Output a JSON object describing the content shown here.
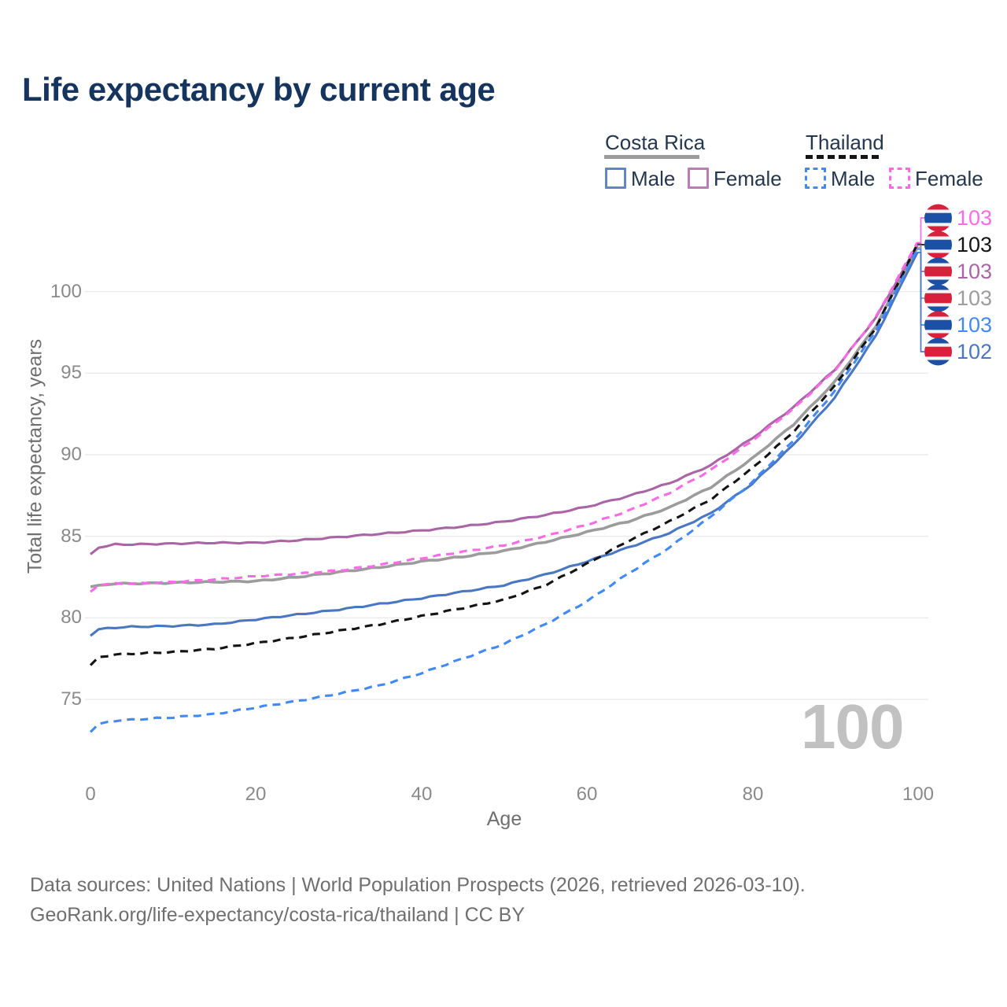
{
  "title": "Life expectancy by current age",
  "legend": {
    "groups": [
      {
        "title": "Costa Rica",
        "line_style": "solid",
        "underline_color": "#9c9c9c",
        "items": [
          {
            "label": "Male",
            "color": "#6286c4",
            "dashed": false
          },
          {
            "label": "Female",
            "color": "#b97fb5",
            "dashed": false
          }
        ]
      },
      {
        "title": "Thailand",
        "line_style": "dashed",
        "underline_color": "#141414",
        "items": [
          {
            "label": "Male",
            "color": "#4289f5",
            "dashed": true
          },
          {
            "label": "Female",
            "color": "#f96be6",
            "dashed": true
          }
        ]
      }
    ]
  },
  "chart_data": {
    "type": "line",
    "title": "Life expectancy by current age",
    "xlabel": "Age",
    "ylabel": "Total life expectancy, years",
    "xticks": [
      0,
      20,
      40,
      60,
      80,
      100
    ],
    "yticks": [
      75,
      80,
      85,
      90,
      95,
      100
    ],
    "xlim": [
      0,
      100
    ],
    "ylim": [
      72,
      104
    ],
    "grid": "horizontal",
    "ages": [
      0,
      1,
      3,
      5,
      10,
      15,
      20,
      25,
      30,
      35,
      40,
      45,
      50,
      55,
      60,
      65,
      70,
      75,
      80,
      85,
      90,
      95,
      100
    ],
    "series": [
      {
        "name": "Costa Rica",
        "role": "overall",
        "color": "#9c9c9c",
        "dashed": false,
        "values": [
          81.9,
          82.0,
          82.1,
          82.1,
          82.15,
          82.2,
          82.25,
          82.5,
          82.8,
          83.1,
          83.45,
          83.75,
          84.1,
          84.65,
          85.25,
          85.9,
          86.75,
          88.0,
          89.75,
          91.85,
          94.45,
          97.9,
          102.7
        ]
      },
      {
        "name": "Costa Rica Female",
        "role": "female",
        "color": "#a965a5",
        "dashed": false,
        "values": [
          83.9,
          84.3,
          84.5,
          84.5,
          84.55,
          84.6,
          84.6,
          84.75,
          84.95,
          85.15,
          85.35,
          85.6,
          85.9,
          86.3,
          86.8,
          87.45,
          88.25,
          89.35,
          91.0,
          92.9,
          95.2,
          98.4,
          102.85
        ]
      },
      {
        "name": "Costa Rica Male",
        "role": "male",
        "color": "#4a77c4",
        "dashed": false,
        "values": [
          78.9,
          79.3,
          79.4,
          79.45,
          79.5,
          79.6,
          79.9,
          80.2,
          80.5,
          80.85,
          81.2,
          81.6,
          82.0,
          82.65,
          83.45,
          84.3,
          85.2,
          86.4,
          88.2,
          90.6,
          93.5,
          97.3,
          102.4
        ]
      },
      {
        "name": "Thailand",
        "role": "overall",
        "color": "#141414",
        "dashed": true,
        "values": [
          77.1,
          77.6,
          77.75,
          77.8,
          77.9,
          78.1,
          78.45,
          78.8,
          79.2,
          79.6,
          80.1,
          80.6,
          81.1,
          82.0,
          83.3,
          84.7,
          85.9,
          87.25,
          89.15,
          91.4,
          94.2,
          97.8,
          102.9
        ]
      },
      {
        "name": "Thailand Female",
        "role": "female",
        "color": "#f96be6",
        "dashed": true,
        "values": [
          81.6,
          82.0,
          82.1,
          82.1,
          82.2,
          82.35,
          82.55,
          82.7,
          82.9,
          83.25,
          83.65,
          84.05,
          84.45,
          85.0,
          85.7,
          86.55,
          87.65,
          89.05,
          90.85,
          92.8,
          95.15,
          98.45,
          103.0
        ]
      },
      {
        "name": "Thailand Male",
        "role": "male",
        "color": "#4289f5",
        "dashed": true,
        "values": [
          73.0,
          73.5,
          73.7,
          73.75,
          73.9,
          74.1,
          74.5,
          74.9,
          75.35,
          75.85,
          76.6,
          77.5,
          78.4,
          79.6,
          81.0,
          82.7,
          84.3,
          86.2,
          88.3,
          90.85,
          93.9,
          97.6,
          102.6
        ]
      }
    ],
    "end_rows": [
      {
        "label": "103",
        "series": "Thailand Female",
        "flag": "thailand",
        "color": "#f96be6"
      },
      {
        "label": "103",
        "series": "Thailand",
        "flag": "thailand",
        "color": "#141414"
      },
      {
        "label": "103",
        "series": "Costa Rica Female",
        "flag": "costa-rica",
        "color": "#a965a5"
      },
      {
        "label": "103",
        "series": "Costa Rica",
        "flag": "costa-rica",
        "color": "#9c9c9c"
      },
      {
        "label": "103",
        "series": "Thailand Male",
        "flag": "thailand",
        "color": "#4289f5"
      },
      {
        "label": "102",
        "series": "Costa Rica Male",
        "flag": "costa-rica",
        "color": "#4a77c4"
      }
    ],
    "flag_colors": {
      "red": "#d8203d",
      "blue": "#1c4fa6",
      "white": "#f4f4f4"
    }
  },
  "annotations": {
    "age_cursor": "100"
  },
  "footer": {
    "line1": "Data sources: United Nations | World Population Prospects (2026, retrieved 2026-03-10).",
    "line2": "GeoRank.org/life-expectancy/costa-rica/thailand | CC BY"
  }
}
